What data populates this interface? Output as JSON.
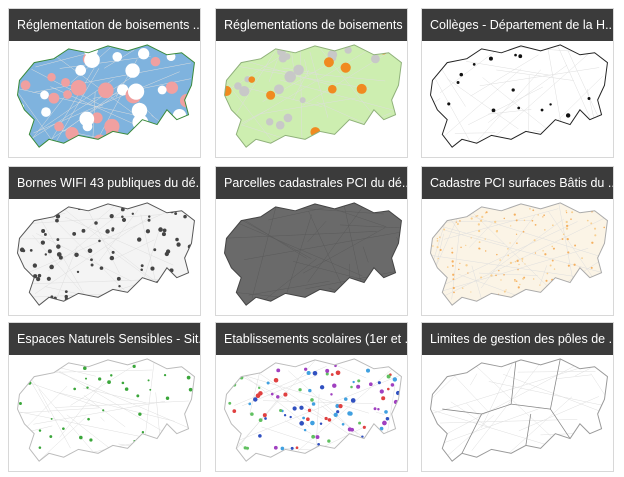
{
  "cards": [
    {
      "title": "Réglementation de boisements ..."
    },
    {
      "title": "Réglementations de boisements ..."
    },
    {
      "title": "Collèges - Département de la H..."
    },
    {
      "title": "Bornes WIFI 43 publiques du dé..."
    },
    {
      "title": "Parcelles cadastrales PCI du dé..."
    },
    {
      "title": "Cadastre PCI surfaces Bâtis du ..."
    },
    {
      "title": "Espaces Naturels Sensibles - Sit..."
    },
    {
      "title": "Etablissements scolaires (1er et ..."
    },
    {
      "title": "Limites de gestion des pôles de ..."
    }
  ]
}
